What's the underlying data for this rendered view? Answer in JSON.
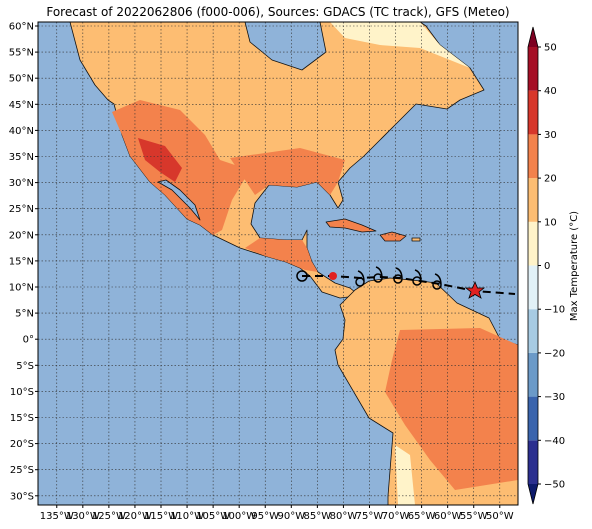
{
  "map": {
    "title": "Forecast of 2022062806 (f000-006), Sources: GDACS (TC track), GFS (Meteo)",
    "lat_ticks": [
      {
        "value": 60,
        "label": "60°N"
      },
      {
        "value": 55,
        "label": "55°N"
      },
      {
        "value": 50,
        "label": "50°N"
      },
      {
        "value": 45,
        "label": "45°N"
      },
      {
        "value": 40,
        "label": "40°N"
      },
      {
        "value": 35,
        "label": "35°N"
      },
      {
        "value": 30,
        "label": "30°N"
      },
      {
        "value": 25,
        "label": "25°N"
      },
      {
        "value": 20,
        "label": "20°N"
      },
      {
        "value": 15,
        "label": "15°N"
      },
      {
        "value": 10,
        "label": "10°N"
      },
      {
        "value": 5,
        "label": "5°N"
      },
      {
        "value": 0,
        "label": "0°"
      },
      {
        "value": -5,
        "label": "5°S"
      },
      {
        "value": -10,
        "label": "10°S"
      },
      {
        "value": -15,
        "label": "15°S"
      },
      {
        "value": -20,
        "label": "20°S"
      },
      {
        "value": -25,
        "label": "25°S"
      },
      {
        "value": -30,
        "label": "30°S"
      }
    ],
    "lon_ticks": [
      {
        "value": -135,
        "label": "135°W"
      },
      {
        "value": -130,
        "label": "130°W"
      },
      {
        "value": -125,
        "label": "125°W"
      },
      {
        "value": -120,
        "label": "120°W"
      },
      {
        "value": -115,
        "label": "115°W"
      },
      {
        "value": -110,
        "label": "110°W"
      },
      {
        "value": -105,
        "label": "105°W"
      },
      {
        "value": -100,
        "label": "100°W"
      },
      {
        "value": -95,
        "label": "95°W"
      },
      {
        "value": -90,
        "label": "90°W"
      },
      {
        "value": -85,
        "label": "85°W"
      },
      {
        "value": -80,
        "label": "80°W"
      },
      {
        "value": -75,
        "label": "75°W"
      },
      {
        "value": -70,
        "label": "70°W"
      },
      {
        "value": -65,
        "label": "65°W"
      },
      {
        "value": -60,
        "label": "60°W"
      },
      {
        "value": -55,
        "label": "55°W"
      },
      {
        "value": -50,
        "label": "50°W"
      }
    ],
    "colorbar": {
      "label": "Max Temperature (°C)",
      "lim": [
        -50,
        50
      ],
      "ticks": [
        {
          "value": -50,
          "label": "−50"
        },
        {
          "value": -40,
          "label": "−40"
        },
        {
          "value": -30,
          "label": "−30"
        },
        {
          "value": -20,
          "label": "−20"
        },
        {
          "value": -10,
          "label": "−10"
        },
        0,
        10,
        20,
        30,
        40,
        50
      ],
      "colors": [
        "#2b2f8f",
        "#3a64ad",
        "#6b9ac8",
        "#a7cbe3",
        "#e2f1f7",
        "#fff3c9",
        "#fdbd72",
        "#f3824c",
        "#d7372b",
        "#a50f26"
      ],
      "extend_low_color": "#0d1a6b",
      "extend_high_color": "#7d0021"
    }
  }
}
